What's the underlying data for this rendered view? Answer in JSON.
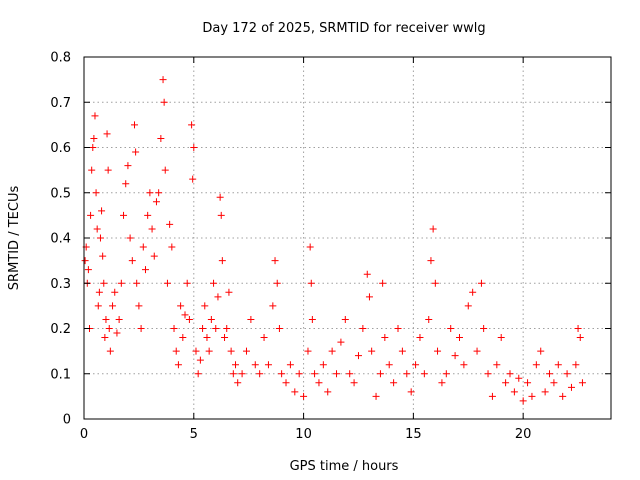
{
  "chart_data": {
    "type": "scatter",
    "title": "Day 172 of 2025, SRMTID for receiver wwlg",
    "xlabel": "GPS time / hours",
    "ylabel": "SRMTID / TECUs",
    "xlim": [
      0,
      24
    ],
    "ylim": [
      0,
      0.8
    ],
    "x_ticks": [
      0,
      5,
      10,
      15,
      20
    ],
    "y_ticks": [
      0,
      0.1,
      0.2,
      0.3,
      0.4,
      0.5,
      0.6,
      0.7,
      0.8
    ],
    "x_tick_labels": [
      "0",
      "5",
      "10",
      "15",
      "20"
    ],
    "y_tick_labels": [
      "0",
      "0.1",
      "0.2",
      "0.3",
      "0.4",
      "0.5",
      "0.6",
      "0.7",
      "0.8"
    ],
    "grid": true,
    "marker": "+",
    "marker_color": "#ff0000",
    "series": [
      {
        "name": "SRMTID",
        "points": [
          [
            0.05,
            0.35
          ],
          [
            0.1,
            0.38
          ],
          [
            0.15,
            0.3
          ],
          [
            0.2,
            0.33
          ],
          [
            0.25,
            0.2
          ],
          [
            0.3,
            0.45
          ],
          [
            0.35,
            0.55
          ],
          [
            0.4,
            0.6
          ],
          [
            0.45,
            0.62
          ],
          [
            0.5,
            0.67
          ],
          [
            0.55,
            0.5
          ],
          [
            0.6,
            0.42
          ],
          [
            0.65,
            0.25
          ],
          [
            0.7,
            0.28
          ],
          [
            0.75,
            0.4
          ],
          [
            0.8,
            0.46
          ],
          [
            0.85,
            0.36
          ],
          [
            0.9,
            0.3
          ],
          [
            0.95,
            0.18
          ],
          [
            1.0,
            0.22
          ],
          [
            1.05,
            0.63
          ],
          [
            1.1,
            0.55
          ],
          [
            1.15,
            0.2
          ],
          [
            1.2,
            0.15
          ],
          [
            1.3,
            0.25
          ],
          [
            1.4,
            0.28
          ],
          [
            1.5,
            0.19
          ],
          [
            1.6,
            0.22
          ],
          [
            1.7,
            0.3
          ],
          [
            1.8,
            0.45
          ],
          [
            1.9,
            0.52
          ],
          [
            2.0,
            0.56
          ],
          [
            2.1,
            0.4
          ],
          [
            2.2,
            0.35
          ],
          [
            2.3,
            0.65
          ],
          [
            2.35,
            0.59
          ],
          [
            2.4,
            0.3
          ],
          [
            2.5,
            0.25
          ],
          [
            2.6,
            0.2
          ],
          [
            2.7,
            0.38
          ],
          [
            2.8,
            0.33
          ],
          [
            2.9,
            0.45
          ],
          [
            3.0,
            0.5
          ],
          [
            3.1,
            0.42
          ],
          [
            3.2,
            0.36
          ],
          [
            3.3,
            0.48
          ],
          [
            3.4,
            0.5
          ],
          [
            3.5,
            0.62
          ],
          [
            3.6,
            0.75
          ],
          [
            3.65,
            0.7
          ],
          [
            3.7,
            0.55
          ],
          [
            3.8,
            0.3
          ],
          [
            3.9,
            0.43
          ],
          [
            4.0,
            0.38
          ],
          [
            4.1,
            0.2
          ],
          [
            4.2,
            0.15
          ],
          [
            4.3,
            0.12
          ],
          [
            4.4,
            0.25
          ],
          [
            4.5,
            0.18
          ],
          [
            4.6,
            0.23
          ],
          [
            4.7,
            0.3
          ],
          [
            4.8,
            0.22
          ],
          [
            4.9,
            0.65
          ],
          [
            4.95,
            0.53
          ],
          [
            5.0,
            0.6
          ],
          [
            5.1,
            0.15
          ],
          [
            5.2,
            0.1
          ],
          [
            5.3,
            0.13
          ],
          [
            5.4,
            0.2
          ],
          [
            5.5,
            0.25
          ],
          [
            5.6,
            0.18
          ],
          [
            5.7,
            0.15
          ],
          [
            5.8,
            0.22
          ],
          [
            5.9,
            0.3
          ],
          [
            6.0,
            0.2
          ],
          [
            6.1,
            0.27
          ],
          [
            6.2,
            0.49
          ],
          [
            6.25,
            0.45
          ],
          [
            6.3,
            0.35
          ],
          [
            6.4,
            0.18
          ],
          [
            6.5,
            0.2
          ],
          [
            6.6,
            0.28
          ],
          [
            6.7,
            0.15
          ],
          [
            6.8,
            0.1
          ],
          [
            6.9,
            0.12
          ],
          [
            7.0,
            0.08
          ],
          [
            7.2,
            0.1
          ],
          [
            7.4,
            0.15
          ],
          [
            7.6,
            0.22
          ],
          [
            7.8,
            0.12
          ],
          [
            8.0,
            0.1
          ],
          [
            8.2,
            0.18
          ],
          [
            8.4,
            0.12
          ],
          [
            8.6,
            0.25
          ],
          [
            8.7,
            0.35
          ],
          [
            8.8,
            0.3
          ],
          [
            8.9,
            0.2
          ],
          [
            9.0,
            0.1
          ],
          [
            9.2,
            0.08
          ],
          [
            9.4,
            0.12
          ],
          [
            9.6,
            0.06
          ],
          [
            9.8,
            0.1
          ],
          [
            10.0,
            0.05
          ],
          [
            10.2,
            0.15
          ],
          [
            10.3,
            0.38
          ],
          [
            10.35,
            0.3
          ],
          [
            10.4,
            0.22
          ],
          [
            10.5,
            0.1
          ],
          [
            10.7,
            0.08
          ],
          [
            10.9,
            0.12
          ],
          [
            11.1,
            0.06
          ],
          [
            11.3,
            0.15
          ],
          [
            11.5,
            0.1
          ],
          [
            11.7,
            0.17
          ],
          [
            11.9,
            0.22
          ],
          [
            12.1,
            0.1
          ],
          [
            12.3,
            0.08
          ],
          [
            12.5,
            0.14
          ],
          [
            12.7,
            0.2
          ],
          [
            12.9,
            0.32
          ],
          [
            13.0,
            0.27
          ],
          [
            13.1,
            0.15
          ],
          [
            13.3,
            0.05
          ],
          [
            13.5,
            0.1
          ],
          [
            13.6,
            0.3
          ],
          [
            13.7,
            0.18
          ],
          [
            13.9,
            0.12
          ],
          [
            14.1,
            0.08
          ],
          [
            14.3,
            0.2
          ],
          [
            14.5,
            0.15
          ],
          [
            14.7,
            0.1
          ],
          [
            14.9,
            0.06
          ],
          [
            15.1,
            0.12
          ],
          [
            15.3,
            0.18
          ],
          [
            15.5,
            0.1
          ],
          [
            15.7,
            0.22
          ],
          [
            15.8,
            0.35
          ],
          [
            15.9,
            0.42
          ],
          [
            16.0,
            0.3
          ],
          [
            16.1,
            0.15
          ],
          [
            16.3,
            0.08
          ],
          [
            16.5,
            0.1
          ],
          [
            16.7,
            0.2
          ],
          [
            16.9,
            0.14
          ],
          [
            17.1,
            0.18
          ],
          [
            17.3,
            0.12
          ],
          [
            17.5,
            0.25
          ],
          [
            17.7,
            0.28
          ],
          [
            17.9,
            0.15
          ],
          [
            18.1,
            0.3
          ],
          [
            18.2,
            0.2
          ],
          [
            18.4,
            0.1
          ],
          [
            18.6,
            0.05
          ],
          [
            18.8,
            0.12
          ],
          [
            19.0,
            0.18
          ],
          [
            19.2,
            0.08
          ],
          [
            19.4,
            0.1
          ],
          [
            19.6,
            0.06
          ],
          [
            19.8,
            0.09
          ],
          [
            20.0,
            0.04
          ],
          [
            20.2,
            0.08
          ],
          [
            20.4,
            0.05
          ],
          [
            20.6,
            0.12
          ],
          [
            20.8,
            0.15
          ],
          [
            21.0,
            0.06
          ],
          [
            21.2,
            0.1
          ],
          [
            21.4,
            0.08
          ],
          [
            21.6,
            0.12
          ],
          [
            21.8,
            0.05
          ],
          [
            22.0,
            0.1
          ],
          [
            22.2,
            0.07
          ],
          [
            22.4,
            0.12
          ],
          [
            22.5,
            0.2
          ],
          [
            22.6,
            0.18
          ],
          [
            22.7,
            0.08
          ]
        ]
      }
    ]
  }
}
